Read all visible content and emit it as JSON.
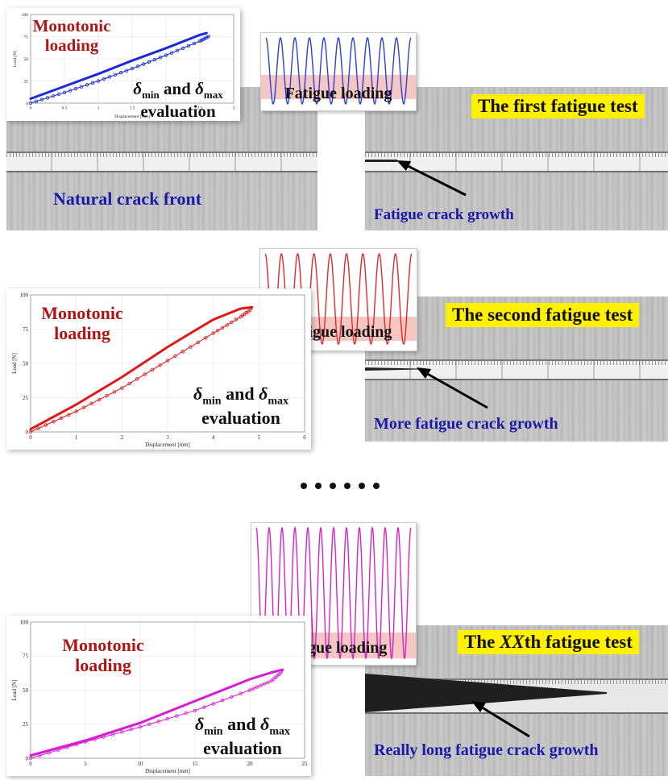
{
  "panels": [
    {
      "id": "first",
      "test_title": "The first fatigue test",
      "chart": {
        "color": "#1a2bd6",
        "ylabel": "Load [N]",
        "xlabel": "Displacement [mm]",
        "xticks": [
          "0",
          "0.5",
          "1",
          "1.5",
          "2",
          "2.5",
          "3"
        ],
        "yticks": [
          "0",
          "25",
          "50",
          "75",
          "100"
        ],
        "xlim": [
          0,
          3
        ],
        "ylim": [
          0,
          100
        ],
        "upper_curve": [
          [
            0,
            5
          ],
          [
            0.5,
            19
          ],
          [
            1,
            33
          ],
          [
            1.5,
            48
          ],
          [
            2,
            62
          ],
          [
            2.5,
            77
          ],
          [
            2.6,
            79
          ]
        ],
        "lower_curve": [
          [
            0,
            0
          ],
          [
            0.5,
            12
          ],
          [
            1,
            25
          ],
          [
            1.5,
            39
          ],
          [
            2,
            54
          ],
          [
            2.5,
            70
          ],
          [
            2.65,
            76
          ]
        ]
      },
      "monotonic_label": [
        "Monotonic",
        "loading"
      ],
      "evaluation_label": "evaluation",
      "delta_min": "min",
      "delta_max": "max",
      "delta_and": "and",
      "fatigue_label": "Fatigue loading",
      "wave_color": "#2b3fd6",
      "wave_cycles": 10,
      "left_photo_label": "Natural crack front",
      "right_photo_label": "Fatigue crack growth"
    },
    {
      "id": "second",
      "test_title": "The second fatigue test",
      "chart": {
        "color": "#e01818",
        "ylabel": "Load [N]",
        "xlabel": "Displacement [mm]",
        "xticks": [
          "0",
          "1",
          "2",
          "3",
          "4",
          "5",
          "6"
        ],
        "yticks": [
          "0",
          "25",
          "50",
          "75",
          "100"
        ],
        "xlim": [
          0,
          6
        ],
        "ylim": [
          0,
          100
        ],
        "upper_curve": [
          [
            0,
            2
          ],
          [
            1,
            20
          ],
          [
            2,
            40
          ],
          [
            3,
            62
          ],
          [
            4,
            82
          ],
          [
            4.6,
            90
          ],
          [
            4.85,
            91
          ]
        ],
        "lower_curve": [
          [
            0,
            0
          ],
          [
            1,
            15
          ],
          [
            2,
            32
          ],
          [
            3,
            52
          ],
          [
            4,
            72
          ],
          [
            4.6,
            84
          ],
          [
            4.85,
            90
          ]
        ]
      },
      "monotonic_label": [
        "Monotonic",
        "loading"
      ],
      "evaluation_label": "evaluation",
      "delta_min": "min",
      "delta_max": "max",
      "delta_and": "and",
      "fatigue_label": "Fatigue loading",
      "wave_color": "#e02a2a",
      "wave_cycles": 9,
      "right_photo_label": "More fatigue crack growth"
    },
    {
      "id": "xx",
      "test_title_prefix": "The ",
      "test_title_italic": "XX",
      "test_title_suffix": "th fatigue test",
      "chart": {
        "color": "#d81ad8",
        "ylabel": "Load [N]",
        "xlabel": "Displacement [mm]",
        "xticks": [
          "0",
          "5",
          "10",
          "15",
          "20",
          "25"
        ],
        "yticks": [
          "0",
          "25",
          "50",
          "75",
          "100"
        ],
        "xlim": [
          0,
          25
        ],
        "ylim": [
          0,
          100
        ],
        "upper_curve": [
          [
            0,
            2
          ],
          [
            5,
            13
          ],
          [
            10,
            26
          ],
          [
            15,
            42
          ],
          [
            20,
            58
          ],
          [
            22,
            63
          ],
          [
            23,
            65
          ]
        ],
        "lower_curve": [
          [
            0,
            0
          ],
          [
            5,
            12
          ],
          [
            10,
            23
          ],
          [
            15,
            35
          ],
          [
            20,
            50
          ],
          [
            22,
            57
          ],
          [
            23,
            64
          ]
        ]
      },
      "monotonic_label": [
        "Monotonic",
        "loading"
      ],
      "evaluation_label": "evaluation",
      "delta_min": "min",
      "delta_max": "max",
      "delta_and": "and",
      "fatigue_label": "Fatigue loading",
      "wave_color": "#d424c8",
      "wave_cycles": 12,
      "right_photo_label": "Really long fatigue crack growth"
    }
  ],
  "ellipsis_count": 6
}
